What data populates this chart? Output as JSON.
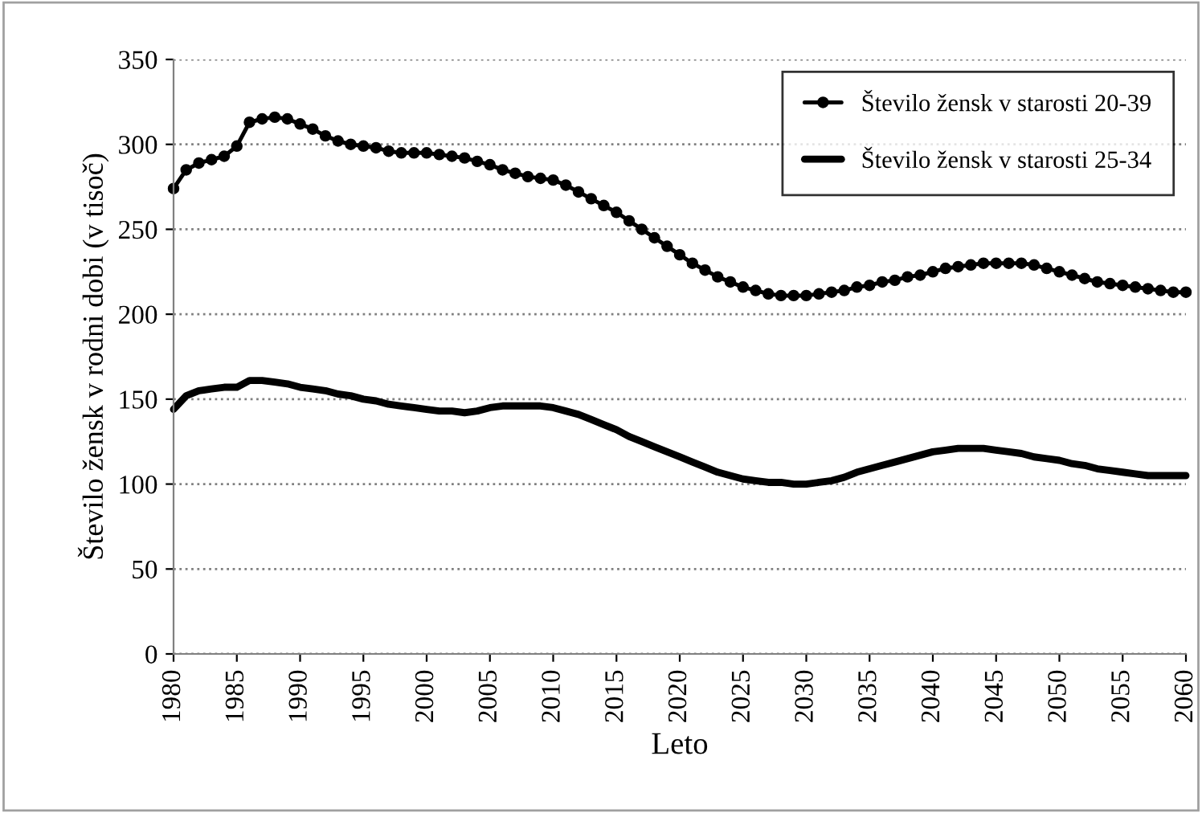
{
  "chart_data": {
    "type": "line",
    "xlabel": "Leto",
    "ylabel": "Število žensk v rodni dobi (v tisoč)",
    "x": [
      1980,
      1981,
      1982,
      1983,
      1984,
      1985,
      1986,
      1987,
      1988,
      1989,
      1990,
      1991,
      1992,
      1993,
      1994,
      1995,
      1996,
      1997,
      1998,
      1999,
      2000,
      2001,
      2002,
      2003,
      2004,
      2005,
      2006,
      2007,
      2008,
      2009,
      2010,
      2011,
      2012,
      2013,
      2014,
      2015,
      2016,
      2017,
      2018,
      2019,
      2020,
      2021,
      2022,
      2023,
      2024,
      2025,
      2026,
      2027,
      2028,
      2029,
      2030,
      2031,
      2032,
      2033,
      2034,
      2035,
      2036,
      2037,
      2038,
      2039,
      2040,
      2041,
      2042,
      2043,
      2044,
      2045,
      2046,
      2047,
      2048,
      2049,
      2050,
      2051,
      2052,
      2053,
      2054,
      2055,
      2056,
      2057,
      2058,
      2059,
      2060
    ],
    "series": [
      {
        "name": "Število žensk v starosti 20-39",
        "color": "#000000",
        "marker": "circle",
        "values": [
          274,
          285,
          289,
          291,
          293,
          299,
          313,
          315,
          316,
          315,
          312,
          309,
          305,
          302,
          300,
          299,
          298,
          296,
          295,
          295,
          295,
          294,
          293,
          292,
          290,
          288,
          285,
          283,
          281,
          280,
          279,
          276,
          272,
          268,
          264,
          260,
          255,
          250,
          245,
          240,
          235,
          230,
          226,
          222,
          219,
          216,
          214,
          212,
          211,
          211,
          211,
          212,
          213,
          214,
          216,
          217,
          219,
          220,
          222,
          223,
          225,
          227,
          228,
          229,
          230,
          230,
          230,
          230,
          229,
          227,
          225,
          223,
          221,
          219,
          218,
          217,
          216,
          215,
          214,
          213,
          213
        ]
      },
      {
        "name": "Število žensk v starosti 25-34",
        "color": "#000000",
        "marker": "none",
        "values": [
          144,
          152,
          155,
          156,
          157,
          157,
          161,
          161,
          160,
          159,
          157,
          156,
          155,
          153,
          152,
          150,
          149,
          147,
          146,
          145,
          144,
          143,
          143,
          142,
          143,
          145,
          146,
          146,
          146,
          146,
          145,
          143,
          141,
          138,
          135,
          132,
          128,
          125,
          122,
          119,
          116,
          113,
          110,
          107,
          105,
          103,
          102,
          101,
          101,
          100,
          100,
          101,
          102,
          104,
          107,
          109,
          111,
          113,
          115,
          117,
          119,
          120,
          121,
          121,
          121,
          120,
          119,
          118,
          116,
          115,
          114,
          112,
          111,
          109,
          108,
          107,
          106,
          105,
          105,
          105,
          105
        ]
      }
    ],
    "xlim": [
      1980,
      2060
    ],
    "xticks": [
      1980,
      1985,
      1990,
      1995,
      2000,
      2005,
      2010,
      2015,
      2020,
      2025,
      2030,
      2035,
      2040,
      2045,
      2050,
      2055,
      2060
    ],
    "ylim": [
      0,
      350
    ],
    "yticks": [
      0,
      50,
      100,
      150,
      200,
      250,
      300,
      350
    ],
    "grid": "y",
    "legend": "top right",
    "line_style": "solid"
  }
}
